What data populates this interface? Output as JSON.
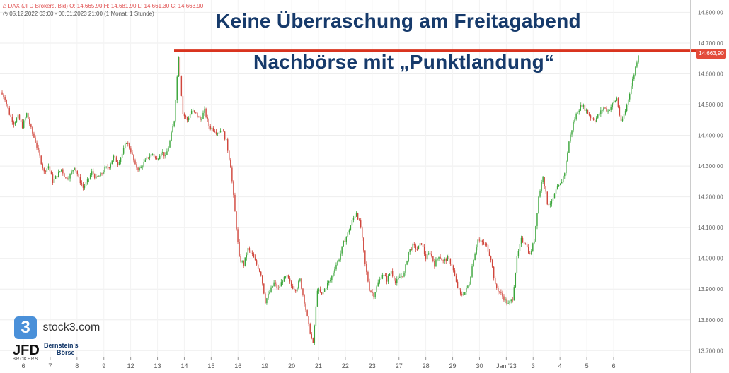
{
  "header": {
    "instrument": "DAX (JFD Brokers, Bid)",
    "ohlc": "O: 14.665,90  H: 14.681,90  L: 14.661,30  C: 14.663,90",
    "range": "05.12.2022 03:00 - 06.01.2023 21:00",
    "interval": "(1 Monat, 1 Stunde)"
  },
  "headline": {
    "line1": "Keine Überraschung am Freitagabend",
    "line2": "Nachbörse mit „Punktlandung“"
  },
  "logos": {
    "stock3": "stock3.com",
    "jfd": "JFD",
    "jfd_sub": "BROKERS",
    "bernstein_1": "Bernstein's",
    "bernstein_2": "Börse"
  },
  "colors": {
    "up": "#3aa53a",
    "down": "#d0463c",
    "level_line": "#d9341f",
    "headline": "#163a6b"
  },
  "chart_data": {
    "type": "candlestick",
    "title": "",
    "ylim": [
      13680,
      14840
    ],
    "y_ticks": [
      13700,
      13800,
      13900,
      14000,
      14100,
      14200,
      14300,
      14400,
      14500,
      14600,
      14700,
      14800
    ],
    "y_tick_labels": [
      "13.700,00",
      "13.800,00",
      "13.900,00",
      "14.000,00",
      "14.100,00",
      "14.200,00",
      "14.300,00",
      "14.400,00",
      "14.500,00",
      "14.600,00",
      "14.700,00",
      "14.800,00"
    ],
    "x_labels": [
      "6",
      "7",
      "8",
      "9",
      "12",
      "13",
      "14",
      "15",
      "16",
      "19",
      "20",
      "21",
      "22",
      "23",
      "27",
      "28",
      "29",
      "30",
      "Jan '23",
      "3",
      "4",
      "5",
      "6"
    ],
    "horizontal_level": 14675,
    "last_price_label": "14.663,90",
    "path": [
      14540,
      14520,
      14470,
      14440,
      14460,
      14430,
      14470,
      14420,
      14380,
      14330,
      14280,
      14300,
      14250,
      14270,
      14290,
      14260,
      14270,
      14300,
      14260,
      14230,
      14250,
      14280,
      14260,
      14270,
      14290,
      14300,
      14330,
      14310,
      14340,
      14380,
      14350,
      14300,
      14290,
      14310,
      14330,
      14340,
      14320,
      14350,
      14330,
      14380,
      14450,
      14660,
      14470,
      14450,
      14480,
      14470,
      14450,
      14480,
      14430,
      14420,
      14410,
      14420,
      14380,
      14300,
      14150,
      14000,
      13980,
      14030,
      14010,
      13980,
      13950,
      13860,
      13890,
      13920,
      13900,
      13930,
      13940,
      13910,
      13900,
      13930,
      13860,
      13780,
      13720,
      13900,
      13880,
      13910,
      13930,
      13970,
      14000,
      14050,
      14080,
      14120,
      14150,
      14100,
      13980,
      13900,
      13880,
      13920,
      13950,
      13930,
      13960,
      13920,
      13940,
      13950,
      14020,
      14040,
      14030,
      14050,
      14000,
      14020,
      13980,
      14010,
      13990,
      14000,
      13980,
      13920,
      13880,
      13890,
      13920,
      14000,
      14060,
      14050,
      14040,
      14000,
      13910,
      13890,
      13870,
      13850,
      13870,
      14000,
      14060,
      14050,
      14010,
      14060,
      14200,
      14270,
      14180,
      14180,
      14220,
      14240,
      14280,
      14380,
      14440,
      14480,
      14500,
      14480,
      14460,
      14450,
      14470,
      14490,
      14480,
      14500,
      14520,
      14440,
      14480,
      14540,
      14600,
      14664
    ]
  }
}
